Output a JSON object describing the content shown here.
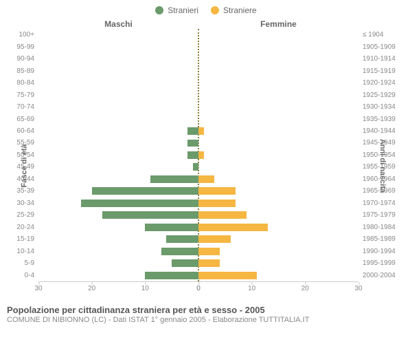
{
  "chart": {
    "type": "population-pyramid",
    "legend": [
      {
        "label": "Stranieri",
        "color": "#6b9a6b"
      },
      {
        "label": "Straniere",
        "color": "#f5b642"
      }
    ],
    "header_left": "Maschi",
    "header_right": "Femmine",
    "y_left_title": "Fasce di età",
    "y_right_title": "Anni di nascita",
    "x_max": 30,
    "x_ticks_left": [
      "30",
      "20",
      "10",
      "0"
    ],
    "x_ticks_right": [
      "0",
      "10",
      "20",
      "30"
    ],
    "bar_height_pct": 62,
    "divider_color": "#8a7a3a",
    "background_color": "#ffffff",
    "axis_color": "#cccccc",
    "tick_font_size": 10,
    "tick_color": "#888888",
    "rows": [
      {
        "age": "100+",
        "birth": "≤ 1904",
        "m": 0,
        "f": 0
      },
      {
        "age": "95-99",
        "birth": "1905-1909",
        "m": 0,
        "f": 0
      },
      {
        "age": "90-94",
        "birth": "1910-1914",
        "m": 0,
        "f": 0
      },
      {
        "age": "85-89",
        "birth": "1915-1919",
        "m": 0,
        "f": 0
      },
      {
        "age": "80-84",
        "birth": "1920-1924",
        "m": 0,
        "f": 0
      },
      {
        "age": "75-79",
        "birth": "1925-1929",
        "m": 0,
        "f": 0
      },
      {
        "age": "70-74",
        "birth": "1930-1934",
        "m": 0,
        "f": 0
      },
      {
        "age": "65-69",
        "birth": "1935-1939",
        "m": 0,
        "f": 0
      },
      {
        "age": "60-64",
        "birth": "1940-1944",
        "m": 2,
        "f": 1
      },
      {
        "age": "55-59",
        "birth": "1945-1949",
        "m": 2,
        "f": 0
      },
      {
        "age": "50-54",
        "birth": "1950-1954",
        "m": 2,
        "f": 1
      },
      {
        "age": "45-49",
        "birth": "1955-1959",
        "m": 1,
        "f": 0
      },
      {
        "age": "40-44",
        "birth": "1960-1964",
        "m": 9,
        "f": 3
      },
      {
        "age": "35-39",
        "birth": "1965-1969",
        "m": 20,
        "f": 7
      },
      {
        "age": "30-34",
        "birth": "1970-1974",
        "m": 22,
        "f": 7
      },
      {
        "age": "25-29",
        "birth": "1975-1979",
        "m": 18,
        "f": 9
      },
      {
        "age": "20-24",
        "birth": "1980-1984",
        "m": 10,
        "f": 13
      },
      {
        "age": "15-19",
        "birth": "1985-1989",
        "m": 6,
        "f": 6
      },
      {
        "age": "10-14",
        "birth": "1990-1994",
        "m": 7,
        "f": 4
      },
      {
        "age": "5-9",
        "birth": "1995-1999",
        "m": 5,
        "f": 4
      },
      {
        "age": "0-4",
        "birth": "2000-2004",
        "m": 10,
        "f": 11
      }
    ]
  },
  "footer": {
    "title": "Popolazione per cittadinanza straniera per età e sesso - 2005",
    "sub": "COMUNE DI NIBIONNO (LC) - Dati ISTAT 1° gennaio 2005 - Elaborazione TUTTITALIA.IT"
  }
}
